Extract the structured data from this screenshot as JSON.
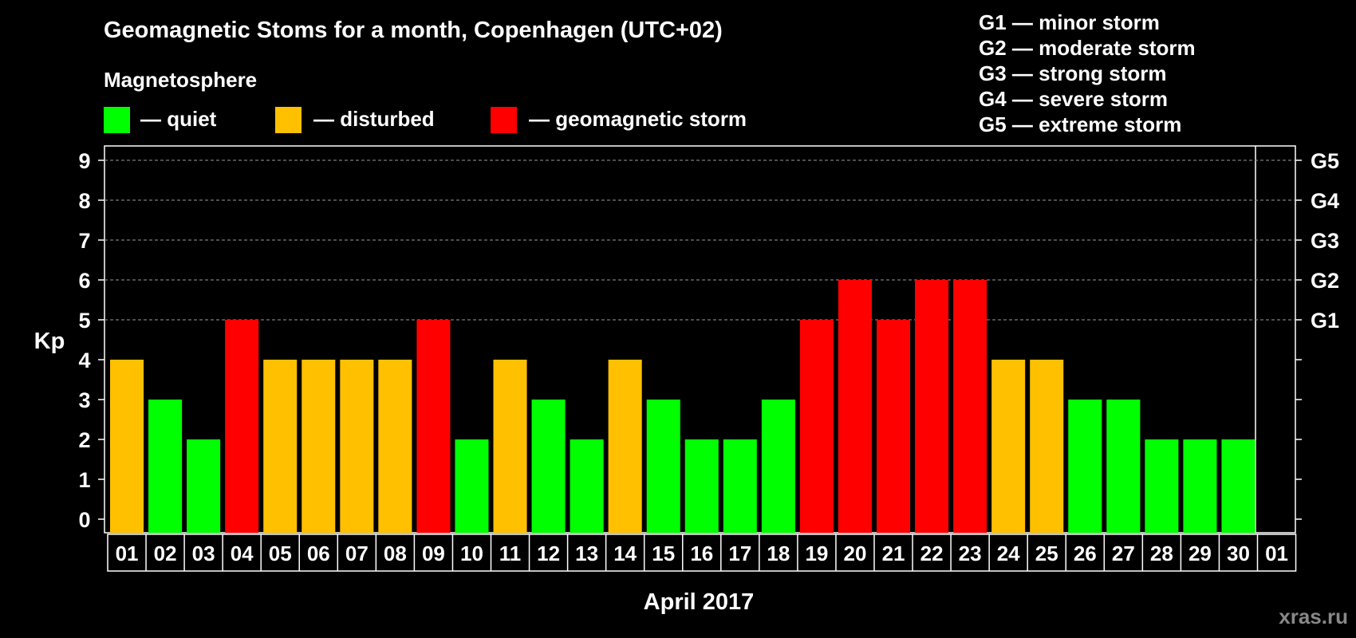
{
  "chart_data": {
    "type": "bar",
    "title": "Geomagnetic Stoms for a month, Copenhagen (UTC+02)",
    "subtitle": "Magnetosphere",
    "ylabel": "Kp",
    "xlabel": "April 2017",
    "ylim": [
      0,
      9
    ],
    "yticks": [
      "0",
      "1",
      "2",
      "3",
      "4",
      "5",
      "6",
      "7",
      "8",
      "9"
    ],
    "right_ticks": [
      {
        "kp": 5,
        "label": "G1"
      },
      {
        "kp": 6,
        "label": "G2"
      },
      {
        "kp": 7,
        "label": "G3"
      },
      {
        "kp": 8,
        "label": "G4"
      },
      {
        "kp": 9,
        "label": "G5"
      }
    ],
    "categories": [
      "01",
      "02",
      "03",
      "04",
      "05",
      "06",
      "07",
      "08",
      "09",
      "10",
      "11",
      "12",
      "13",
      "14",
      "15",
      "16",
      "17",
      "18",
      "19",
      "20",
      "21",
      "22",
      "23",
      "24",
      "25",
      "26",
      "27",
      "28",
      "29",
      "30",
      "01"
    ],
    "values": [
      4,
      3,
      2,
      5,
      4,
      4,
      4,
      4,
      5,
      2,
      4,
      3,
      2,
      4,
      3,
      2,
      2,
      3,
      5,
      6,
      5,
      6,
      6,
      4,
      4,
      3,
      3,
      2,
      2,
      2,
      null
    ],
    "grid_dashed_at": [
      5,
      6,
      7,
      8,
      9
    ],
    "legend": [
      {
        "label": "— quiet",
        "color": "#00ff00"
      },
      {
        "label": "— disturbed",
        "color": "#ffc000"
      },
      {
        "label": "— geomagnetic storm",
        "color": "#ff0000"
      }
    ],
    "storm_scale": [
      "G1 — minor storm",
      "G2 — moderate storm",
      "G3 — strong storm",
      "G4 — severe storm",
      "G5 — extreme storm"
    ],
    "colors": {
      "quiet": "#00ff00",
      "disturbed": "#ffc000",
      "storm": "#ff0000"
    }
  },
  "watermark": "xras.ru"
}
